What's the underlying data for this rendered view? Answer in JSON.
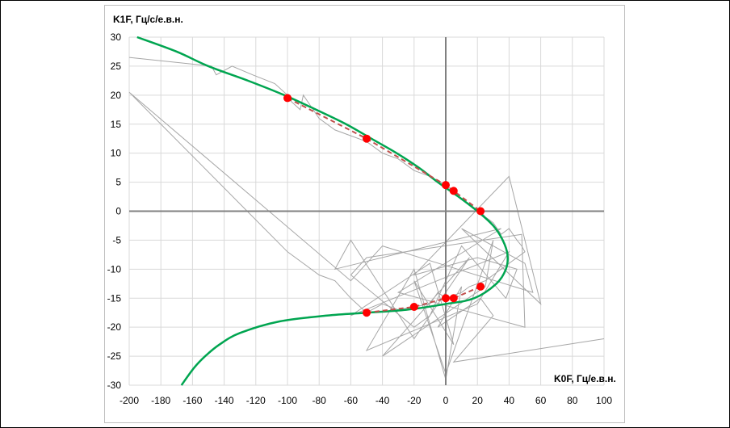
{
  "chart_data": {
    "type": "scatter",
    "xlabel": "K0F, Гц/е.в.н.",
    "ylabel": "K1F, Гц/с/е.в.н.",
    "xlim": [
      -200,
      100
    ],
    "ylim": [
      -30,
      30
    ],
    "x_ticks": [
      -200,
      -180,
      -160,
      -140,
      -120,
      -100,
      -80,
      -60,
      -40,
      -20,
      0,
      20,
      40,
      60,
      80,
      100
    ],
    "y_ticks": [
      -30,
      -25,
      -20,
      -15,
      -10,
      -5,
      0,
      5,
      10,
      15,
      20,
      25,
      30
    ],
    "grid": true,
    "legend": "none",
    "colors": {
      "raw": "#a6a6a6",
      "fit": "#00a550",
      "markers": "#ff0000",
      "marker_line": "#c0504d",
      "axes": "#808080",
      "grid": "#d9d9d9"
    },
    "series": [
      {
        "role": "raw-trajectory",
        "x": [
          -200,
          -148,
          -145,
          -135,
          -122,
          -108,
          -100,
          -100,
          -92,
          -90,
          -80,
          -70,
          -60,
          -50,
          -40,
          -30,
          -20,
          -10,
          0,
          5,
          10,
          15,
          22,
          25,
          30,
          35,
          40,
          45,
          48,
          50,
          45,
          40,
          35,
          30,
          25,
          20,
          15,
          10,
          5,
          0,
          -5,
          -10,
          -20,
          -30,
          -40,
          -50,
          -60,
          -70,
          -80,
          -90,
          -100,
          -200,
          -60,
          -40,
          55,
          50,
          10,
          60,
          40,
          -20,
          20,
          45,
          38,
          10,
          -10,
          -20,
          -60,
          -50,
          48,
          50,
          -30,
          35,
          -70,
          -60,
          -20,
          15,
          -40,
          25,
          30,
          0,
          -20,
          5,
          -10,
          -60,
          40,
          20,
          -50,
          -20,
          0,
          10,
          -5,
          22,
          30,
          5,
          100
        ],
        "y": [
          26.5,
          25,
          23.5,
          25,
          23.5,
          22,
          20,
          19.5,
          17.5,
          20,
          16,
          14,
          13,
          12,
          10,
          9,
          7,
          6,
          4.5,
          3.5,
          2,
          1,
          0,
          -1,
          -2,
          -4,
          -3,
          -5,
          -6,
          -7,
          -8,
          -9,
          -10,
          -11,
          -12,
          -12.5,
          -13,
          -14,
          -14.5,
          -15,
          -14,
          -16,
          -16.5,
          -17,
          -16,
          -17.5,
          -15,
          -12,
          -11,
          -9,
          -7,
          20.5,
          -12,
          -6,
          -14,
          -9,
          -3,
          -16,
          6,
          -11,
          -8,
          -10,
          -15,
          -6,
          -18,
          -20,
          -11,
          -8,
          -4,
          -20,
          -14,
          -3,
          -10,
          -5,
          -22,
          -8,
          -25,
          -13,
          -5,
          -28,
          -12,
          -23,
          -9,
          -18,
          -7,
          -16,
          -24,
          -10,
          -29,
          -13,
          -20,
          -15,
          -18,
          -26,
          -22
        ]
      },
      {
        "role": "fitted-curve",
        "y": [
          30,
          27.5,
          25,
          22.5,
          20,
          17.5,
          15,
          12.5,
          10,
          7.5,
          5,
          2.5,
          0,
          -2.5,
          -5,
          -7.5,
          -10,
          -12.5,
          -15,
          -16,
          -17,
          -17.5,
          -18,
          -19,
          -21,
          -23,
          -25,
          -27,
          -30
        ],
        "x": [
          -195,
          -170,
          -150,
          -125,
          -102,
          -82,
          -63,
          -47,
          -31,
          -17,
          -5,
          8,
          20,
          30,
          36,
          39,
          38,
          32,
          18,
          0,
          -25,
          -50,
          -75,
          -105,
          -130,
          -143,
          -152,
          -159,
          -167
        ]
      },
      {
        "role": "upper-points",
        "x": [
          -100,
          -50,
          0,
          5,
          22
        ],
        "y": [
          19.5,
          12.5,
          4.5,
          3.5,
          0
        ]
      },
      {
        "role": "lower-points",
        "x": [
          -50,
          -20,
          0,
          5,
          22
        ],
        "y": [
          -17.5,
          -16.5,
          -15,
          -15,
          -13
        ]
      }
    ]
  }
}
